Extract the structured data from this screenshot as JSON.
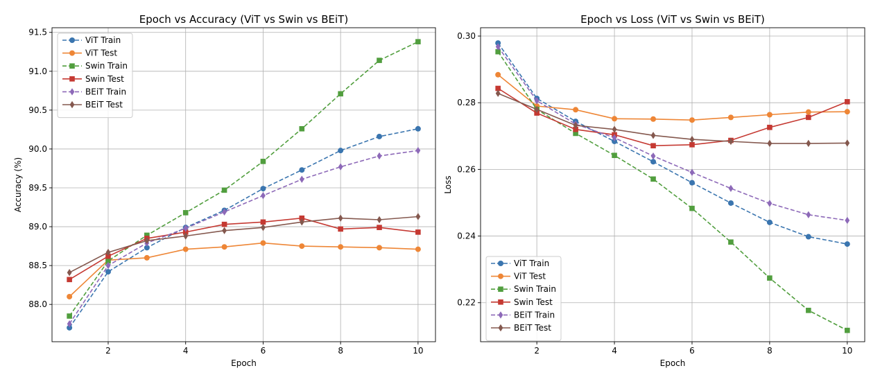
{
  "chart_data": [
    {
      "type": "line",
      "title": "Epoch vs Accuracy (ViT vs Swin vs BEiT)",
      "xlabel": "Epoch",
      "ylabel": "Accuracy (%)",
      "xlim": [
        0.55,
        10.45
      ],
      "ylim": [
        87.52,
        91.56
      ],
      "xticks": [
        2,
        4,
        6,
        8,
        10
      ],
      "yticks": [
        88.0,
        88.5,
        89.0,
        89.5,
        90.0,
        90.5,
        91.0,
        91.5
      ],
      "ytick_labels": [
        "88.0",
        "88.5",
        "89.0",
        "89.5",
        "90.0",
        "90.5",
        "91.0",
        "91.5"
      ],
      "grid": true,
      "legend": "upper-left",
      "x": [
        1,
        2,
        3,
        4,
        5,
        6,
        7,
        8,
        9,
        10
      ],
      "series": [
        {
          "name": "ViT Train",
          "color": "#3a75af",
          "dash": true,
          "marker": "circle",
          "values": [
            87.7,
            88.42,
            88.73,
            88.99,
            89.21,
            89.49,
            89.73,
            89.98,
            90.16,
            90.26
          ]
        },
        {
          "name": "ViT Test",
          "color": "#ee8636",
          "dash": false,
          "marker": "circle",
          "values": [
            88.1,
            88.57,
            88.6,
            88.71,
            88.74,
            88.79,
            88.75,
            88.74,
            88.73,
            88.71
          ]
        },
        {
          "name": "Swin Train",
          "color": "#519e3e",
          "dash": true,
          "marker": "square",
          "values": [
            87.85,
            88.56,
            88.89,
            89.18,
            89.47,
            89.84,
            90.26,
            90.71,
            91.14,
            91.38
          ]
        },
        {
          "name": "Swin Test",
          "color": "#c53932",
          "dash": false,
          "marker": "square",
          "values": [
            88.32,
            88.62,
            88.85,
            88.93,
            89.03,
            89.06,
            89.11,
            88.97,
            88.99,
            88.93
          ]
        },
        {
          "name": "BEiT Train",
          "color": "#8d69b8",
          "dash": true,
          "marker": "diamond",
          "values": [
            87.75,
            88.5,
            88.79,
            88.98,
            89.19,
            89.4,
            89.61,
            89.77,
            89.91,
            89.98
          ]
        },
        {
          "name": "BEiT Test",
          "color": "#84584e",
          "dash": false,
          "marker": "diamond",
          "values": [
            88.41,
            88.67,
            88.82,
            88.88,
            88.95,
            88.99,
            89.06,
            89.11,
            89.09,
            89.13
          ]
        }
      ]
    },
    {
      "type": "line",
      "title": "Epoch vs Loss (ViT vs Swin vs BEiT)",
      "xlabel": "Epoch",
      "ylabel": "Loss",
      "xlim": [
        0.55,
        10.45
      ],
      "ylim": [
        0.2083,
        0.3025
      ],
      "xticks": [
        2,
        4,
        6,
        8,
        10
      ],
      "yticks": [
        0.22,
        0.24,
        0.26,
        0.28,
        0.3
      ],
      "ytick_labels": [
        "0.22",
        "0.24",
        "0.26",
        "0.28",
        "0.30"
      ],
      "grid": true,
      "legend": "lower-left",
      "x": [
        1,
        2,
        3,
        4,
        5,
        6,
        7,
        8,
        9,
        10
      ],
      "series": [
        {
          "name": "ViT Train",
          "color": "#3a75af",
          "dash": true,
          "marker": "circle",
          "values": [
            0.2979,
            0.2813,
            0.2744,
            0.2684,
            0.2623,
            0.256,
            0.2499,
            0.2441,
            0.2398,
            0.2376
          ]
        },
        {
          "name": "ViT Test",
          "color": "#ee8636",
          "dash": false,
          "marker": "circle",
          "values": [
            0.2884,
            0.279,
            0.2779,
            0.2752,
            0.2751,
            0.2748,
            0.2756,
            0.2764,
            0.2772,
            0.2773
          ]
        },
        {
          "name": "Swin Train",
          "color": "#519e3e",
          "dash": true,
          "marker": "square",
          "values": [
            0.2953,
            0.278,
            0.2708,
            0.2642,
            0.2571,
            0.2483,
            0.2382,
            0.2274,
            0.2177,
            0.2117
          ]
        },
        {
          "name": "Swin Test",
          "color": "#c53932",
          "dash": false,
          "marker": "square",
          "values": [
            0.2843,
            0.2769,
            0.272,
            0.2704,
            0.2671,
            0.2674,
            0.2687,
            0.2726,
            0.2756,
            0.2803
          ]
        },
        {
          "name": "BEiT Train",
          "color": "#8d69b8",
          "dash": true,
          "marker": "diamond",
          "values": [
            0.2968,
            0.2806,
            0.2736,
            0.2695,
            0.264,
            0.2591,
            0.2543,
            0.2498,
            0.2464,
            0.2447
          ]
        },
        {
          "name": "BEiT Test",
          "color": "#84584e",
          "dash": false,
          "marker": "diamond",
          "values": [
            0.2828,
            0.278,
            0.2732,
            0.272,
            0.2702,
            0.269,
            0.2684,
            0.2678,
            0.2678,
            0.2679
          ]
        }
      ]
    }
  ]
}
